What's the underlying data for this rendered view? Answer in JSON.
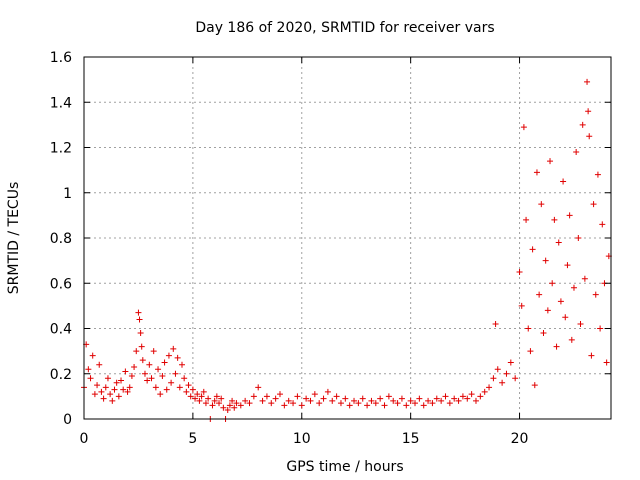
{
  "chart_data": {
    "type": "scatter",
    "title": "Day 186 of 2020, SRMTID for receiver vars",
    "xlabel": "GPS time / hours",
    "ylabel": "SRMTID / TECUs",
    "xlim": [
      0,
      24.2
    ],
    "ylim": [
      0,
      1.6
    ],
    "xticks": [
      0,
      5,
      10,
      15,
      20
    ],
    "yticks": [
      0,
      0.2,
      0.4,
      0.6,
      0.8,
      1,
      1.2,
      1.4,
      1.6
    ],
    "grid": true,
    "marker": "plus",
    "color": "#e00000",
    "series": [
      {
        "name": "SRMTID",
        "points": [
          [
            0.0,
            0.14
          ],
          [
            0.1,
            0.33
          ],
          [
            0.2,
            0.22
          ],
          [
            0.3,
            0.18
          ],
          [
            0.4,
            0.28
          ],
          [
            0.5,
            0.11
          ],
          [
            0.6,
            0.15
          ],
          [
            0.7,
            0.24
          ],
          [
            0.8,
            0.12
          ],
          [
            0.9,
            0.09
          ],
          [
            1.0,
            0.14
          ],
          [
            1.1,
            0.18
          ],
          [
            1.2,
            0.11
          ],
          [
            1.3,
            0.08
          ],
          [
            1.4,
            0.13
          ],
          [
            1.5,
            0.16
          ],
          [
            1.6,
            0.1
          ],
          [
            1.7,
            0.17
          ],
          [
            1.8,
            0.13
          ],
          [
            1.9,
            0.21
          ],
          [
            2.0,
            0.12
          ],
          [
            2.1,
            0.14
          ],
          [
            2.2,
            0.19
          ],
          [
            2.3,
            0.23
          ],
          [
            2.4,
            0.3
          ],
          [
            2.5,
            0.47
          ],
          [
            2.55,
            0.44
          ],
          [
            2.6,
            0.38
          ],
          [
            2.65,
            0.32
          ],
          [
            2.7,
            0.26
          ],
          [
            2.8,
            0.2
          ],
          [
            2.9,
            0.17
          ],
          [
            3.0,
            0.24
          ],
          [
            3.1,
            0.18
          ],
          [
            3.2,
            0.3
          ],
          [
            3.3,
            0.14
          ],
          [
            3.4,
            0.22
          ],
          [
            3.5,
            0.11
          ],
          [
            3.6,
            0.19
          ],
          [
            3.7,
            0.25
          ],
          [
            3.8,
            0.13
          ],
          [
            3.9,
            0.28
          ],
          [
            4.0,
            0.16
          ],
          [
            4.1,
            0.31
          ],
          [
            4.2,
            0.2
          ],
          [
            4.3,
            0.27
          ],
          [
            4.4,
            0.14
          ],
          [
            4.5,
            0.24
          ],
          [
            4.6,
            0.18
          ],
          [
            4.7,
            0.12
          ],
          [
            4.8,
            0.15
          ],
          [
            4.9,
            0.1
          ],
          [
            5.0,
            0.13
          ],
          [
            5.1,
            0.09
          ],
          [
            5.2,
            0.11
          ],
          [
            5.3,
            0.08
          ],
          [
            5.4,
            0.1
          ],
          [
            5.5,
            0.12
          ],
          [
            5.6,
            0.07
          ],
          [
            5.7,
            0.09
          ],
          [
            5.8,
            0.0
          ],
          [
            5.9,
            0.06
          ],
          [
            6.0,
            0.08
          ],
          [
            6.1,
            0.1
          ],
          [
            6.2,
            0.07
          ],
          [
            6.3,
            0.09
          ],
          [
            6.4,
            0.05
          ],
          [
            6.5,
            0.0
          ],
          [
            6.6,
            0.04
          ],
          [
            6.7,
            0.06
          ],
          [
            6.8,
            0.08
          ],
          [
            6.9,
            0.05
          ],
          [
            7.0,
            0.07
          ],
          [
            7.2,
            0.06
          ],
          [
            7.4,
            0.08
          ],
          [
            7.6,
            0.07
          ],
          [
            7.8,
            0.1
          ],
          [
            8.0,
            0.14
          ],
          [
            8.2,
            0.08
          ],
          [
            8.4,
            0.1
          ],
          [
            8.6,
            0.07
          ],
          [
            8.8,
            0.09
          ],
          [
            9.0,
            0.11
          ],
          [
            9.2,
            0.06
          ],
          [
            9.4,
            0.08
          ],
          [
            9.6,
            0.07
          ],
          [
            9.8,
            0.1
          ],
          [
            10.0,
            0.06
          ],
          [
            10.2,
            0.09
          ],
          [
            10.4,
            0.08
          ],
          [
            10.6,
            0.11
          ],
          [
            10.8,
            0.07
          ],
          [
            11.0,
            0.09
          ],
          [
            11.2,
            0.12
          ],
          [
            11.4,
            0.08
          ],
          [
            11.6,
            0.1
          ],
          [
            11.8,
            0.07
          ],
          [
            12.0,
            0.09
          ],
          [
            12.2,
            0.06
          ],
          [
            12.4,
            0.08
          ],
          [
            12.6,
            0.07
          ],
          [
            12.8,
            0.09
          ],
          [
            13.0,
            0.06
          ],
          [
            13.2,
            0.08
          ],
          [
            13.4,
            0.07
          ],
          [
            13.6,
            0.09
          ],
          [
            13.8,
            0.06
          ],
          [
            14.0,
            0.1
          ],
          [
            14.2,
            0.08
          ],
          [
            14.4,
            0.07
          ],
          [
            14.6,
            0.09
          ],
          [
            14.8,
            0.06
          ],
          [
            15.0,
            0.08
          ],
          [
            15.2,
            0.07
          ],
          [
            15.4,
            0.09
          ],
          [
            15.6,
            0.06
          ],
          [
            15.8,
            0.08
          ],
          [
            16.0,
            0.07
          ],
          [
            16.2,
            0.09
          ],
          [
            16.4,
            0.08
          ],
          [
            16.6,
            0.1
          ],
          [
            16.8,
            0.07
          ],
          [
            17.0,
            0.09
          ],
          [
            17.2,
            0.08
          ],
          [
            17.4,
            0.1
          ],
          [
            17.6,
            0.09
          ],
          [
            17.8,
            0.11
          ],
          [
            18.0,
            0.08
          ],
          [
            18.2,
            0.1
          ],
          [
            18.4,
            0.12
          ],
          [
            18.6,
            0.14
          ],
          [
            18.8,
            0.18
          ],
          [
            18.9,
            0.42
          ],
          [
            19.0,
            0.22
          ],
          [
            19.2,
            0.16
          ],
          [
            19.4,
            0.2
          ],
          [
            19.6,
            0.25
          ],
          [
            19.8,
            0.18
          ],
          [
            20.0,
            0.65
          ],
          [
            20.1,
            0.5
          ],
          [
            20.2,
            1.29
          ],
          [
            20.3,
            0.88
          ],
          [
            20.4,
            0.4
          ],
          [
            20.5,
            0.3
          ],
          [
            20.6,
            0.75
          ],
          [
            20.7,
            0.15
          ],
          [
            20.8,
            1.09
          ],
          [
            20.9,
            0.55
          ],
          [
            21.0,
            0.95
          ],
          [
            21.1,
            0.38
          ],
          [
            21.2,
            0.7
          ],
          [
            21.3,
            0.48
          ],
          [
            21.4,
            1.14
          ],
          [
            21.5,
            0.6
          ],
          [
            21.6,
            0.88
          ],
          [
            21.7,
            0.32
          ],
          [
            21.8,
            0.78
          ],
          [
            21.9,
            0.52
          ],
          [
            22.0,
            1.05
          ],
          [
            22.1,
            0.45
          ],
          [
            22.2,
            0.68
          ],
          [
            22.3,
            0.9
          ],
          [
            22.4,
            0.35
          ],
          [
            22.5,
            0.58
          ],
          [
            22.6,
            1.18
          ],
          [
            22.7,
            0.8
          ],
          [
            22.8,
            0.42
          ],
          [
            22.9,
            1.3
          ],
          [
            23.0,
            0.62
          ],
          [
            23.1,
            1.49
          ],
          [
            23.15,
            1.36
          ],
          [
            23.2,
            1.25
          ],
          [
            23.3,
            0.28
          ],
          [
            23.4,
            0.95
          ],
          [
            23.5,
            0.55
          ],
          [
            23.6,
            1.08
          ],
          [
            23.7,
            0.4
          ],
          [
            23.8,
            0.86
          ],
          [
            23.9,
            0.6
          ],
          [
            24.0,
            0.25
          ],
          [
            24.1,
            0.72
          ]
        ]
      }
    ]
  }
}
